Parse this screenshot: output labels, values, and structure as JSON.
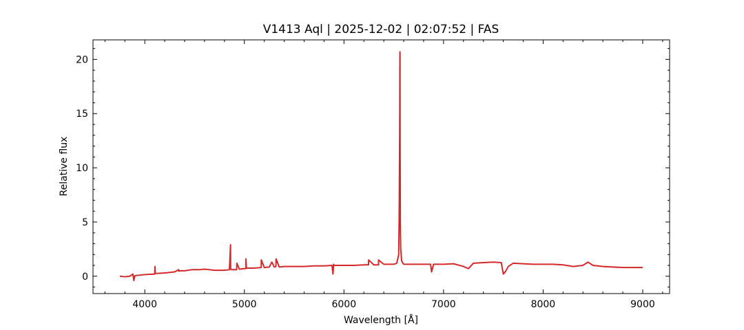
{
  "chart_data": {
    "type": "line",
    "title": "V1413 Aql | 2025-12-02 | 02:07:52 | FAS",
    "xlabel": "Wavelength [Å]",
    "ylabel": "Relative flux",
    "xlim": [
      3480,
      9270
    ],
    "ylim": [
      -1.6,
      21.8
    ],
    "xticks": [
      4000,
      5000,
      6000,
      7000,
      8000,
      9000
    ],
    "yticks": [
      0,
      5,
      10,
      15,
      20
    ],
    "grid": false,
    "legend": "none",
    "series": [
      {
        "color": "#d62728",
        "x": [
          3750,
          3800,
          3850,
          3880,
          3890,
          3900,
          3950,
          4000,
          4100,
          4102,
          4105,
          4200,
          4300,
          4340,
          4342,
          4345,
          4400,
          4471,
          4500,
          4550,
          4600,
          4650,
          4700,
          4750,
          4800,
          4850,
          4861,
          4862,
          4870,
          4922,
          4925,
          4950,
          5000,
          5015,
          5016,
          5020,
          5100,
          5169,
          5170,
          5200,
          5250,
          5276,
          5300,
          5317,
          5318,
          5350,
          5400,
          5500,
          5600,
          5700,
          5800,
          5880,
          5890,
          5896,
          5900,
          6000,
          6100,
          6200,
          6247,
          6248,
          6300,
          6347,
          6348,
          6400,
          6450,
          6500,
          6530,
          6550,
          6555,
          6560,
          6562,
          6563,
          6564,
          6566,
          6570,
          6580,
          6600,
          6700,
          6800,
          6870,
          6880,
          6900,
          7000,
          7100,
          7200,
          7250,
          7300,
          7400,
          7500,
          7580,
          7600,
          7620,
          7650,
          7700,
          7800,
          7900,
          8000,
          8100,
          8200,
          8300,
          8400,
          8450,
          8500,
          8600,
          8700,
          8800,
          8900,
          9000
        ],
        "y": [
          0.0,
          -0.05,
          0.0,
          0.2,
          -0.4,
          0.05,
          0.1,
          0.15,
          0.2,
          0.9,
          0.25,
          0.3,
          0.4,
          0.6,
          0.45,
          0.5,
          0.5,
          0.6,
          0.6,
          0.6,
          0.65,
          0.6,
          0.55,
          0.55,
          0.55,
          0.6,
          2.9,
          0.7,
          0.6,
          0.6,
          1.2,
          0.65,
          0.7,
          0.7,
          1.6,
          0.75,
          0.75,
          0.8,
          1.5,
          0.8,
          0.85,
          1.3,
          0.85,
          0.9,
          1.6,
          0.85,
          0.9,
          0.9,
          0.9,
          0.95,
          0.95,
          1.0,
          0.2,
          1.1,
          1.0,
          1.0,
          1.0,
          1.05,
          1.05,
          1.5,
          1.05,
          1.05,
          1.5,
          1.1,
          1.1,
          1.1,
          1.2,
          2.0,
          6.0,
          14.0,
          20.7,
          20.3,
          12.0,
          5.0,
          2.5,
          1.4,
          1.1,
          1.1,
          1.1,
          1.1,
          0.4,
          1.1,
          1.1,
          1.15,
          0.9,
          0.7,
          1.2,
          1.25,
          1.3,
          1.25,
          0.2,
          0.4,
          0.9,
          1.2,
          1.15,
          1.1,
          1.1,
          1.1,
          1.05,
          0.9,
          1.0,
          1.3,
          1.0,
          0.9,
          0.85,
          0.8,
          0.8,
          0.8
        ]
      }
    ]
  }
}
